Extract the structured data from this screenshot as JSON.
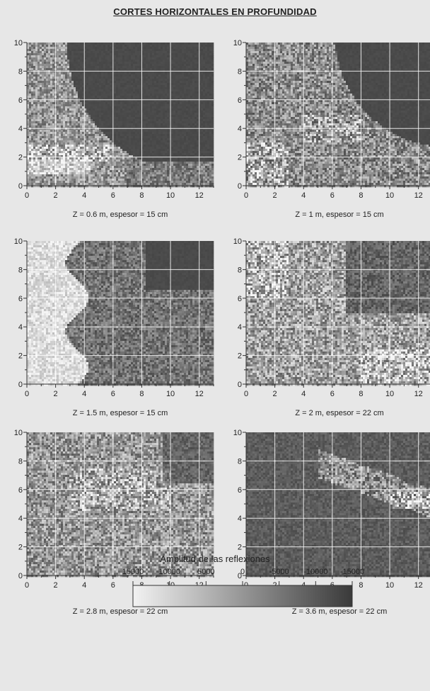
{
  "title": "CORTES HORIZONTALES EN PROFUNDIDAD",
  "chart_data": {
    "type": "heatmap",
    "grid": true,
    "xlim": [
      0,
      13
    ],
    "ylim": [
      0,
      10
    ],
    "xticks": [
      "0",
      "2",
      "4",
      "6",
      "8",
      "10",
      "12"
    ],
    "yticks": [
      "0",
      "2",
      "4",
      "6",
      "8",
      "10"
    ],
    "panels": [
      {
        "caption": "Z = 0.6 m, espesor = 15 cm"
      },
      {
        "caption": "Z = 1 m, espesor = 15 cm"
      },
      {
        "caption": "Z = 1.5 m, espesor = 15 cm"
      },
      {
        "caption": "Z = 2 m, espesor = 22 cm"
      },
      {
        "caption": "Z = 2.8 m, espesor = 22 cm"
      },
      {
        "caption": "Z = 3.6 m, espesor = 22 cm"
      }
    ],
    "colorbar": {
      "title": "Amplitud de las reflexiones",
      "ticks": [
        "15000",
        "10000",
        "5000",
        "0",
        "-5000",
        "-10000",
        "-15000"
      ],
      "range": [
        15000,
        -15000
      ],
      "colors": [
        "#f2f2f2",
        "#3a3a3a"
      ]
    }
  }
}
